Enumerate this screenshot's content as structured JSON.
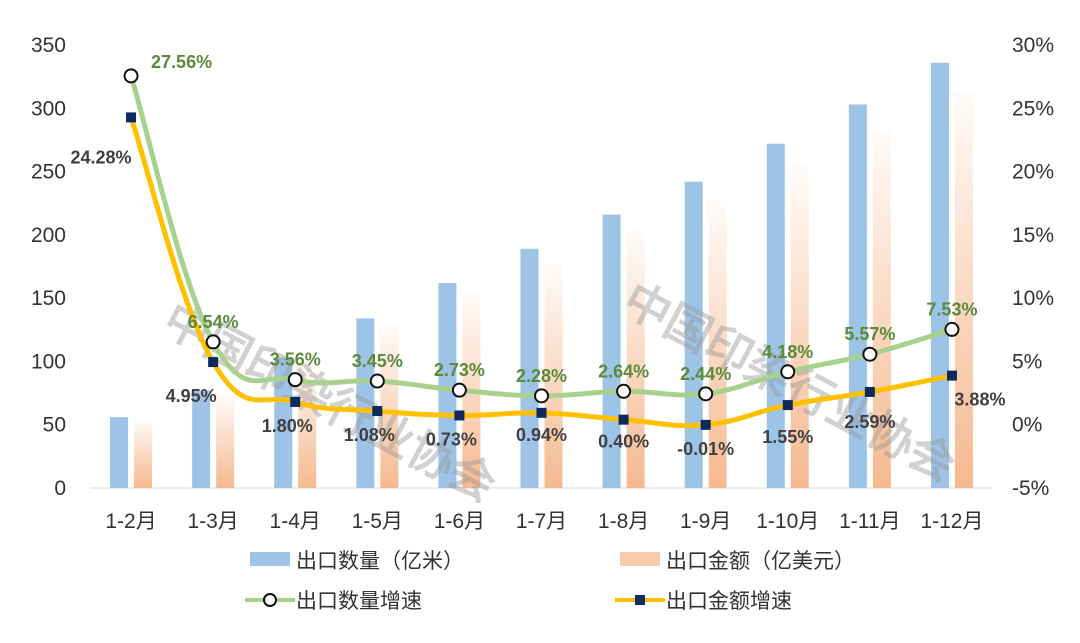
{
  "chart_data": {
    "type": "bar",
    "categories": [
      "1-2月",
      "1-3月",
      "1-4月",
      "1-5月",
      "1-6月",
      "1-7月",
      "1-8月",
      "1-9月",
      "1-10月",
      "1-11月",
      "1-12月"
    ],
    "y_left": {
      "range": [
        0,
        350
      ],
      "ticks": [
        "0",
        "50",
        "100",
        "150",
        "200",
        "250",
        "300",
        "350"
      ]
    },
    "y_right": {
      "range": [
        -5,
        30
      ],
      "ticks": [
        "-5%",
        "0%",
        "5%",
        "10%",
        "15%",
        "20%",
        "25%",
        "30%"
      ]
    },
    "grid": false,
    "legend_placement": "bottom",
    "series": [
      {
        "name": "出口数量（亿米）",
        "type": "bar",
        "axis": "left",
        "color": "#9dc3e6",
        "values": [
          56,
          77,
          103,
          134,
          162,
          189,
          216,
          242,
          272,
          303,
          336
        ]
      },
      {
        "name": "出口金额（亿美元）",
        "type": "bar",
        "axis": "left",
        "color": "#f4b183",
        "values": [
          54,
          73,
          100,
          129,
          155,
          178,
          204,
          227,
          255,
          283,
          313
        ]
      },
      {
        "name": "出口数量增速",
        "type": "line",
        "axis": "right",
        "color": "#a9d18e",
        "marker": "circle",
        "label_color": "#5a8a3a",
        "values": [
          27.56,
          6.54,
          3.56,
          3.45,
          2.73,
          2.28,
          2.64,
          2.44,
          4.18,
          5.57,
          7.53
        ],
        "labels": [
          "27.56%",
          "6.54%",
          "3.56%",
          "3.45%",
          "2.73%",
          "2.28%",
          "2.64%",
          "2.44%",
          "4.18%",
          "5.57%",
          "7.53%"
        ]
      },
      {
        "name": "出口金额增速",
        "type": "line",
        "axis": "right",
        "color": "#ffc000",
        "marker": "square",
        "label_color": "#404040",
        "values": [
          24.28,
          4.95,
          1.8,
          1.08,
          0.73,
          0.94,
          0.4,
          -0.01,
          1.55,
          2.59,
          3.88
        ],
        "labels": [
          "24.28%",
          "4.95%",
          "1.80%",
          "1.08%",
          "0.73%",
          "0.94%",
          "0.40%",
          "-0.01%",
          "1.55%",
          "2.59%",
          "3.88%"
        ]
      }
    ],
    "watermark": "中国印染行业协会"
  }
}
